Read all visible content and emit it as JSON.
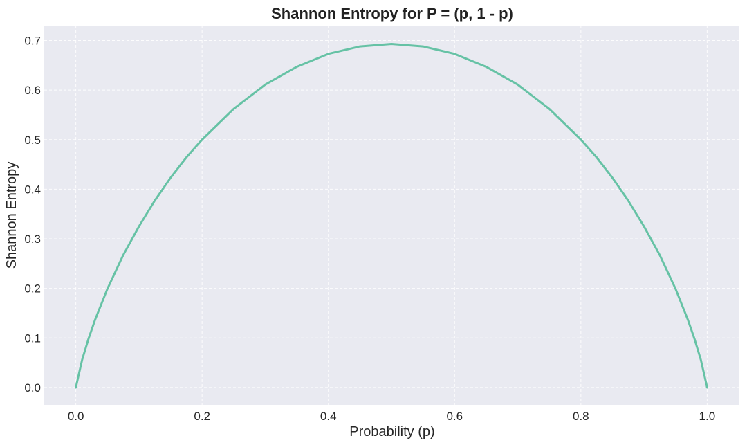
{
  "chart_data": {
    "type": "line",
    "title": "Shannon Entropy for P = (p, 1 - p)",
    "xlabel": "Probability (p)",
    "ylabel": "Shannon Entropy",
    "xlim": [
      -0.05,
      1.05
    ],
    "ylim": [
      -0.035,
      0.73
    ],
    "xticks": [
      "0.0",
      "0.2",
      "0.4",
      "0.6",
      "0.8",
      "1.0"
    ],
    "yticks": [
      "0.0",
      "0.1",
      "0.2",
      "0.3",
      "0.4",
      "0.5",
      "0.6",
      "0.7"
    ],
    "grid": true,
    "series": [
      {
        "color": "#66c2a5",
        "x": [
          0.0,
          0.01,
          0.02,
          0.03,
          0.05,
          0.075,
          0.1,
          0.125,
          0.15,
          0.175,
          0.2,
          0.25,
          0.3,
          0.35,
          0.4,
          0.45,
          0.5,
          0.55,
          0.6,
          0.65,
          0.7,
          0.75,
          0.8,
          0.825,
          0.85,
          0.875,
          0.9,
          0.925,
          0.95,
          0.97,
          0.98,
          0.99,
          1.0
        ],
        "y": [
          0.0,
          0.056,
          0.098,
          0.135,
          0.199,
          0.267,
          0.325,
          0.377,
          0.423,
          0.464,
          0.5,
          0.562,
          0.611,
          0.647,
          0.673,
          0.688,
          0.693,
          0.688,
          0.673,
          0.647,
          0.611,
          0.562,
          0.5,
          0.464,
          0.423,
          0.377,
          0.325,
          0.267,
          0.199,
          0.135,
          0.098,
          0.056,
          0.0
        ]
      }
    ]
  }
}
